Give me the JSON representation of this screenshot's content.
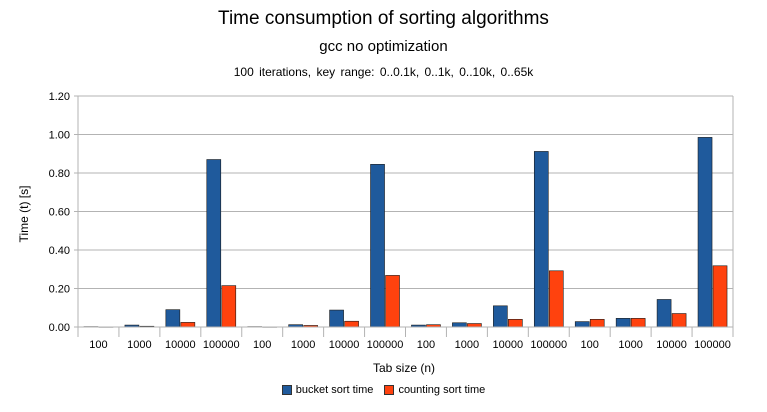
{
  "chart_data": {
    "type": "bar",
    "title": "Time consumption of sorting algorithms",
    "subtitle": "gcc no optimization",
    "subtitle2": "100  iterations,  key  range:  0..0.1k,  0..1k,  0..10k,  0..65k",
    "xlabel": "Tab  size  (n)",
    "ylabel": "Time  (t)  [s]",
    "ylim": [
      0,
      1.2
    ],
    "yticks": [
      "0.00",
      "0.20",
      "0.40",
      "0.60",
      "0.80",
      "1.00",
      "1.20"
    ],
    "categories": [
      "100",
      "1000",
      "10000",
      "100000",
      "100",
      "1000",
      "10000",
      "100000",
      "100",
      "1000",
      "10000",
      "100000",
      "100",
      "1000",
      "10000",
      "100000"
    ],
    "series": [
      {
        "name": "bucket sort time",
        "color": "#1f5a9c",
        "values": [
          0.002,
          0.01,
          0.09,
          0.87,
          0.002,
          0.012,
          0.088,
          0.845,
          0.01,
          0.022,
          0.11,
          0.912,
          0.028,
          0.045,
          0.143,
          0.985
        ]
      },
      {
        "name": "counting sort time",
        "color": "#ff420e",
        "values": [
          0.001,
          0.004,
          0.024,
          0.215,
          0.001,
          0.008,
          0.03,
          0.268,
          0.012,
          0.018,
          0.04,
          0.292,
          0.04,
          0.045,
          0.07,
          0.318
        ]
      }
    ],
    "grid": true,
    "legend_position": "bottom"
  }
}
